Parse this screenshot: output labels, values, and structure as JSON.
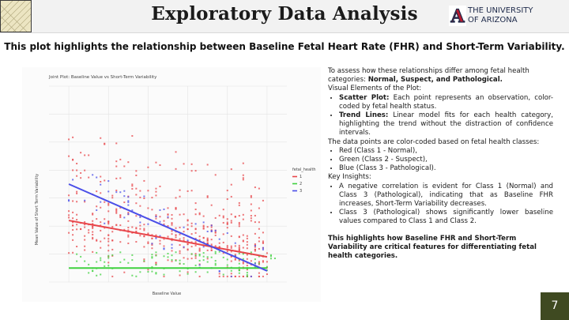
{
  "header": {
    "title": "Exploratory Data Analysis",
    "logo_line1": "THE UNIVERSITY",
    "logo_line2": "OF ARIZONA",
    "logo_letter": "A"
  },
  "subtitle": "This plot highlights the relationship between Baseline Fetal Heart Rate (FHR) and Short-Term Variability.",
  "chart_data": {
    "type": "scatter",
    "title": "Joint Plot: Baseline Value vs Short-Term Variability",
    "xlabel": "Baseline Value",
    "ylabel": "Mean Value of Short Term Variability",
    "legend_title": "fetal_health",
    "legend_position": "right",
    "series": [
      {
        "name": "1",
        "color": "#e8454a",
        "trend": [
          [
            110,
            2.2
          ],
          [
            160,
            0.9
          ]
        ]
      },
      {
        "name": "2",
        "color": "#3fd13f",
        "trend": [
          [
            110,
            0.5
          ],
          [
            160,
            0.5
          ]
        ]
      },
      {
        "name": "3",
        "color": "#4a4ee8",
        "trend": [
          [
            110,
            3.5
          ],
          [
            160,
            0.4
          ]
        ]
      }
    ],
    "xlim": [
      105,
      165
    ],
    "ylim": [
      0,
      7
    ],
    "grid": true
  },
  "body": {
    "intro": "To assess how these relationships differ among fetal health categories:",
    "intro_bold": "Normal, Suspect, and Pathological.",
    "visual_heading": "Visual Elements of the Plot:",
    "bullet1_label": "Scatter Plot:",
    "bullet1_text": " Each point represents an observation, color-coded by fetal health status.",
    "bullet2_label": "Trend Lines:",
    "bullet2_text": " Linear model fits for each health category, highlighting the trend without the distraction of confidence intervals.",
    "colorcode_heading": "The data points are color-coded based on fetal health classes:",
    "class_red": "Red (Class 1 - Normal),",
    "class_green": "Green (Class 2 - Suspect),",
    "class_blue": "Blue (Class 3 - Pathological).",
    "insights_heading": "Key Insights:",
    "insight1": " A negative correlation is evident for Class 1 (Normal) and Class 3 (Pathological), indicating that as Baseline FHR increases, Short-Term Variability decreases.",
    "insight2": "Class 3 (Pathological) shows significantly lower baseline values compared to Class 1 and Class 2.",
    "conclusion": "This highlights how Baseline FHR and Short-Term Variability are critical features for differentiating fetal health categories."
  },
  "page_number": "7",
  "colors": {
    "accent": "#3f4a21",
    "logo_red": "#b8192e",
    "logo_navy": "#1e2a4a"
  }
}
